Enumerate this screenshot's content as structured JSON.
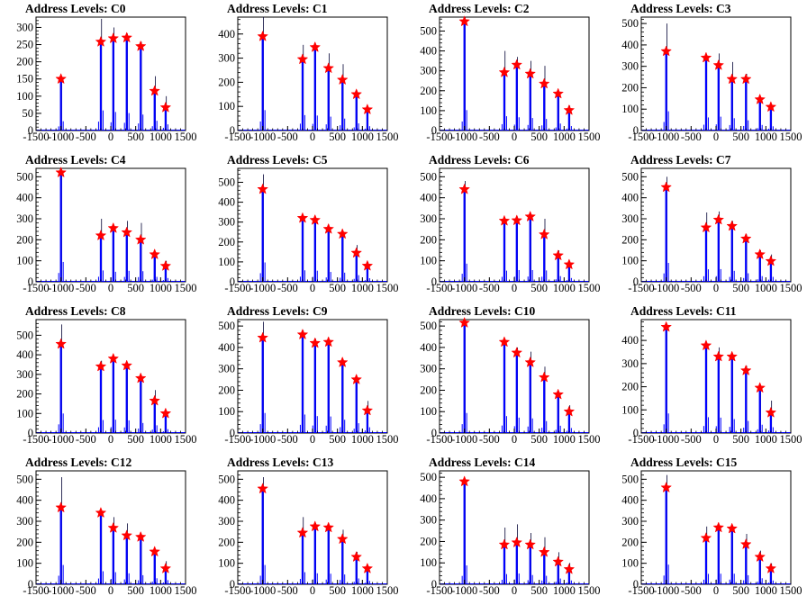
{
  "style": {
    "histogram_color": "#0000ff",
    "marker_color": "#ff0000",
    "axis_color": "#000000"
  },
  "chart_data": [
    {
      "type": "histogram",
      "title": "Address Levels: C0",
      "xlim": [
        -1500,
        1500
      ],
      "xticks": [
        -1500,
        -1000,
        -500,
        0,
        500,
        1000,
        1500
      ],
      "ylim": [
        0,
        330
      ],
      "yticks": [
        0,
        50,
        100,
        150,
        200,
        250,
        300
      ],
      "peaks": [
        {
          "x": -1000,
          "marker": 150,
          "line": 150
        },
        {
          "x": -200,
          "marker": 258,
          "line": 325
        },
        {
          "x": 50,
          "marker": 268,
          "line": 300
        },
        {
          "x": 320,
          "marker": 270,
          "line": 282
        },
        {
          "x": 600,
          "marker": 245,
          "line": 258
        },
        {
          "x": 880,
          "marker": 115,
          "line": 158
        },
        {
          "x": 1100,
          "marker": 67,
          "line": 100
        }
      ]
    },
    {
      "type": "histogram",
      "title": "Address Levels: C1",
      "xlim": [
        -1500,
        1500
      ],
      "xticks": [
        -1500,
        -1000,
        -500,
        0,
        500,
        1000,
        1500
      ],
      "ylim": [
        0,
        470
      ],
      "yticks": [
        0,
        100,
        200,
        300,
        400
      ],
      "peaks": [
        {
          "x": -1000,
          "marker": 390,
          "line": 470
        },
        {
          "x": -200,
          "marker": 295,
          "line": 355
        },
        {
          "x": 50,
          "marker": 345,
          "line": 345
        },
        {
          "x": 320,
          "marker": 258,
          "line": 320
        },
        {
          "x": 600,
          "marker": 210,
          "line": 275
        },
        {
          "x": 880,
          "marker": 150,
          "line": 165
        },
        {
          "x": 1100,
          "marker": 87,
          "line": 100
        }
      ]
    },
    {
      "type": "histogram",
      "title": "Address Levels: C2",
      "xlim": [
        -1500,
        1500
      ],
      "xticks": [
        -1500,
        -1000,
        -500,
        0,
        500,
        1000,
        1500
      ],
      "ylim": [
        0,
        570
      ],
      "yticks": [
        0,
        100,
        200,
        300,
        400,
        500
      ],
      "peaks": [
        {
          "x": -1000,
          "marker": 548,
          "line": 570
        },
        {
          "x": -200,
          "marker": 292,
          "line": 400
        },
        {
          "x": 50,
          "marker": 330,
          "line": 370
        },
        {
          "x": 320,
          "marker": 285,
          "line": 350
        },
        {
          "x": 600,
          "marker": 235,
          "line": 325
        },
        {
          "x": 880,
          "marker": 185,
          "line": 195
        },
        {
          "x": 1100,
          "marker": 102,
          "line": 125
        }
      ]
    },
    {
      "type": "histogram",
      "title": "Address Levels: C3",
      "xlim": [
        -1500,
        1500
      ],
      "xticks": [
        -1500,
        -1000,
        -500,
        0,
        500,
        1000,
        1500
      ],
      "ylim": [
        0,
        530
      ],
      "yticks": [
        0,
        100,
        200,
        300,
        400,
        500
      ],
      "peaks": [
        {
          "x": -1000,
          "marker": 370,
          "line": 500
        },
        {
          "x": -200,
          "marker": 340,
          "line": 340
        },
        {
          "x": 50,
          "marker": 305,
          "line": 360
        },
        {
          "x": 320,
          "marker": 240,
          "line": 320
        },
        {
          "x": 600,
          "marker": 240,
          "line": 265
        },
        {
          "x": 880,
          "marker": 145,
          "line": 145
        },
        {
          "x": 1100,
          "marker": 110,
          "line": 110
        }
      ]
    },
    {
      "type": "histogram",
      "title": "Address Levels: C4",
      "xlim": [
        -1500,
        1500
      ],
      "xticks": [
        -1500,
        -1000,
        -500,
        0,
        500,
        1000,
        1500
      ],
      "ylim": [
        0,
        540
      ],
      "yticks": [
        0,
        100,
        200,
        300,
        400,
        500
      ],
      "peaks": [
        {
          "x": -1000,
          "marker": 520,
          "line": 525
        },
        {
          "x": -200,
          "marker": 220,
          "line": 300
        },
        {
          "x": 50,
          "marker": 255,
          "line": 265
        },
        {
          "x": 320,
          "marker": 235,
          "line": 290
        },
        {
          "x": 600,
          "marker": 200,
          "line": 280
        },
        {
          "x": 880,
          "marker": 130,
          "line": 130
        },
        {
          "x": 1100,
          "marker": 75,
          "line": 100
        }
      ]
    },
    {
      "type": "histogram",
      "title": "Address Levels: C5",
      "xlim": [
        -1500,
        1500
      ],
      "xticks": [
        -1500,
        -1000,
        -500,
        0,
        500,
        1000,
        1500
      ],
      "ylim": [
        0,
        570
      ],
      "yticks": [
        0,
        100,
        200,
        300,
        400,
        500
      ],
      "peaks": [
        {
          "x": -1000,
          "marker": 465,
          "line": 540
        },
        {
          "x": -200,
          "marker": 320,
          "line": 320
        },
        {
          "x": 50,
          "marker": 310,
          "line": 310
        },
        {
          "x": 320,
          "marker": 265,
          "line": 275
        },
        {
          "x": 600,
          "marker": 240,
          "line": 255
        },
        {
          "x": 880,
          "marker": 145,
          "line": 185
        },
        {
          "x": 1100,
          "marker": 80,
          "line": 100
        }
      ]
    },
    {
      "type": "histogram",
      "title": "Address Levels: C6",
      "xlim": [
        -1500,
        1500
      ],
      "xticks": [
        -1500,
        -1000,
        -500,
        0,
        500,
        1000,
        1500
      ],
      "ylim": [
        0,
        540
      ],
      "yticks": [
        0,
        100,
        200,
        300,
        400,
        500
      ],
      "peaks": [
        {
          "x": -1000,
          "marker": 440,
          "line": 480
        },
        {
          "x": -200,
          "marker": 290,
          "line": 295
        },
        {
          "x": 50,
          "marker": 292,
          "line": 310
        },
        {
          "x": 320,
          "marker": 310,
          "line": 310
        },
        {
          "x": 600,
          "marker": 225,
          "line": 300
        },
        {
          "x": 880,
          "marker": 125,
          "line": 150
        },
        {
          "x": 1100,
          "marker": 82,
          "line": 100
        }
      ]
    },
    {
      "type": "histogram",
      "title": "Address Levels: C7",
      "xlim": [
        -1500,
        1500
      ],
      "xticks": [
        -1500,
        -1000,
        -500,
        0,
        500,
        1000,
        1500
      ],
      "ylim": [
        0,
        540
      ],
      "yticks": [
        0,
        100,
        200,
        300,
        400,
        500
      ],
      "peaks": [
        {
          "x": -1000,
          "marker": 450,
          "line": 500
        },
        {
          "x": -200,
          "marker": 258,
          "line": 330
        },
        {
          "x": 50,
          "marker": 295,
          "line": 335
        },
        {
          "x": 320,
          "marker": 265,
          "line": 290
        },
        {
          "x": 600,
          "marker": 205,
          "line": 225
        },
        {
          "x": 880,
          "marker": 130,
          "line": 150
        },
        {
          "x": 1100,
          "marker": 98,
          "line": 130
        }
      ]
    },
    {
      "type": "histogram",
      "title": "Address Levels: C8",
      "xlim": [
        -1500,
        1500
      ],
      "xticks": [
        -1500,
        -1000,
        -500,
        0,
        500,
        1000,
        1500
      ],
      "ylim": [
        0,
        580
      ],
      "yticks": [
        0,
        100,
        200,
        300,
        400,
        500
      ],
      "peaks": [
        {
          "x": -1000,
          "marker": 455,
          "line": 555
        },
        {
          "x": -200,
          "marker": 340,
          "line": 370
        },
        {
          "x": 50,
          "marker": 380,
          "line": 380
        },
        {
          "x": 320,
          "marker": 345,
          "line": 360
        },
        {
          "x": 600,
          "marker": 280,
          "line": 285
        },
        {
          "x": 880,
          "marker": 165,
          "line": 220
        },
        {
          "x": 1100,
          "marker": 100,
          "line": 110
        }
      ]
    },
    {
      "type": "histogram",
      "title": "Address Levels: C9",
      "xlim": [
        -1500,
        1500
      ],
      "xticks": [
        -1500,
        -1000,
        -500,
        0,
        500,
        1000,
        1500
      ],
      "ylim": [
        0,
        530
      ],
      "yticks": [
        0,
        100,
        200,
        300,
        400,
        500
      ],
      "peaks": [
        {
          "x": -1000,
          "marker": 445,
          "line": 520
        },
        {
          "x": -200,
          "marker": 460,
          "line": 480
        },
        {
          "x": 50,
          "marker": 420,
          "line": 440
        },
        {
          "x": 320,
          "marker": 425,
          "line": 430
        },
        {
          "x": 600,
          "marker": 330,
          "line": 345
        },
        {
          "x": 880,
          "marker": 250,
          "line": 255
        },
        {
          "x": 1100,
          "marker": 105,
          "line": 150
        }
      ]
    },
    {
      "type": "histogram",
      "title": "Address Levels: C10",
      "xlim": [
        -1500,
        1500
      ],
      "xticks": [
        -1500,
        -1000,
        -500,
        0,
        500,
        1000,
        1500
      ],
      "ylim": [
        0,
        530
      ],
      "yticks": [
        0,
        100,
        200,
        300,
        400,
        500
      ],
      "peaks": [
        {
          "x": -1000,
          "marker": 515,
          "line": 520
        },
        {
          "x": -200,
          "marker": 425,
          "line": 440
        },
        {
          "x": 50,
          "marker": 375,
          "line": 400
        },
        {
          "x": 320,
          "marker": 330,
          "line": 380
        },
        {
          "x": 600,
          "marker": 260,
          "line": 310
        },
        {
          "x": 880,
          "marker": 180,
          "line": 190
        },
        {
          "x": 1100,
          "marker": 100,
          "line": 130
        }
      ]
    },
    {
      "type": "histogram",
      "title": "Address Levels: C11",
      "xlim": [
        -1500,
        1500
      ],
      "xticks": [
        -1500,
        -1000,
        -500,
        0,
        500,
        1000,
        1500
      ],
      "ylim": [
        0,
        490
      ],
      "yticks": [
        0,
        100,
        200,
        300,
        400
      ],
      "peaks": [
        {
          "x": -1000,
          "marker": 458,
          "line": 470
        },
        {
          "x": -200,
          "marker": 378,
          "line": 380
        },
        {
          "x": 50,
          "marker": 330,
          "line": 370
        },
        {
          "x": 320,
          "marker": 330,
          "line": 335
        },
        {
          "x": 600,
          "marker": 270,
          "line": 290
        },
        {
          "x": 880,
          "marker": 195,
          "line": 200
        },
        {
          "x": 1100,
          "marker": 88,
          "line": 140
        }
      ]
    },
    {
      "type": "histogram",
      "title": "Address Levels: C12",
      "xlim": [
        -1500,
        1500
      ],
      "xticks": [
        -1500,
        -1000,
        -500,
        0,
        500,
        1000,
        1500
      ],
      "ylim": [
        0,
        540
      ],
      "yticks": [
        0,
        100,
        200,
        300,
        400,
        500
      ],
      "peaks": [
        {
          "x": -1000,
          "marker": 365,
          "line": 510
        },
        {
          "x": -200,
          "marker": 340,
          "line": 345
        },
        {
          "x": 50,
          "marker": 268,
          "line": 320
        },
        {
          "x": 320,
          "marker": 232,
          "line": 290
        },
        {
          "x": 600,
          "marker": 225,
          "line": 240
        },
        {
          "x": 880,
          "marker": 155,
          "line": 160
        },
        {
          "x": 1100,
          "marker": 75,
          "line": 110
        }
      ]
    },
    {
      "type": "histogram",
      "title": "Address Levels: C13",
      "xlim": [
        -1500,
        1500
      ],
      "xticks": [
        -1500,
        -1000,
        -500,
        0,
        500,
        1000,
        1500
      ],
      "ylim": [
        0,
        540
      ],
      "yticks": [
        0,
        100,
        200,
        300,
        400,
        500
      ],
      "peaks": [
        {
          "x": -1000,
          "marker": 455,
          "line": 510
        },
        {
          "x": -200,
          "marker": 245,
          "line": 320
        },
        {
          "x": 50,
          "marker": 275,
          "line": 290
        },
        {
          "x": 320,
          "marker": 270,
          "line": 280
        },
        {
          "x": 600,
          "marker": 215,
          "line": 260
        },
        {
          "x": 880,
          "marker": 130,
          "line": 155
        },
        {
          "x": 1100,
          "marker": 75,
          "line": 90
        }
      ]
    },
    {
      "type": "histogram",
      "title": "Address Levels: C14",
      "xlim": [
        -1500,
        1500
      ],
      "xticks": [
        -1500,
        -1000,
        -500,
        0,
        500,
        1000,
        1500
      ],
      "ylim": [
        0,
        530
      ],
      "yticks": [
        0,
        100,
        200,
        300,
        400,
        500
      ],
      "peaks": [
        {
          "x": -1000,
          "marker": 480,
          "line": 490
        },
        {
          "x": -200,
          "marker": 185,
          "line": 265
        },
        {
          "x": 50,
          "marker": 195,
          "line": 280
        },
        {
          "x": 320,
          "marker": 185,
          "line": 240
        },
        {
          "x": 600,
          "marker": 150,
          "line": 220
        },
        {
          "x": 880,
          "marker": 105,
          "line": 150
        },
        {
          "x": 1100,
          "marker": 70,
          "line": 100
        }
      ]
    },
    {
      "type": "histogram",
      "title": "Address Levels: C15",
      "xlim": [
        -1500,
        1500
      ],
      "xticks": [
        -1500,
        -1000,
        -500,
        0,
        500,
        1000,
        1500
      ],
      "ylim": [
        0,
        540
      ],
      "yticks": [
        0,
        100,
        200,
        300,
        400,
        500
      ],
      "peaks": [
        {
          "x": -1000,
          "marker": 460,
          "line": 520
        },
        {
          "x": -200,
          "marker": 220,
          "line": 275
        },
        {
          "x": 50,
          "marker": 270,
          "line": 280
        },
        {
          "x": 320,
          "marker": 265,
          "line": 280
        },
        {
          "x": 600,
          "marker": 190,
          "line": 240
        },
        {
          "x": 880,
          "marker": 130,
          "line": 160
        },
        {
          "x": 1100,
          "marker": 75,
          "line": 100
        }
      ]
    }
  ]
}
